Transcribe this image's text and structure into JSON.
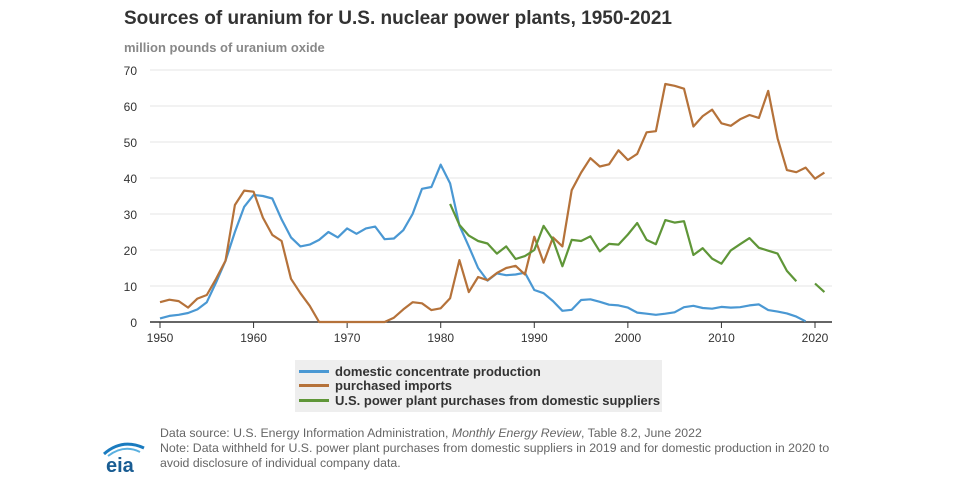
{
  "title": "Sources of uranium for U.S. nuclear power plants, 1950-2021",
  "unit_label": "million pounds of uranium oxide",
  "chart_data": {
    "type": "line",
    "title": "Sources of uranium for U.S. nuclear power plants, 1950-2021",
    "ylabel": "million pounds of uranium oxide",
    "xlim": [
      1950,
      2021
    ],
    "ylim": [
      0,
      70
    ],
    "xticks": [
      1950,
      1960,
      1970,
      1980,
      1990,
      2000,
      2010,
      2020
    ],
    "yticks": [
      0,
      10,
      20,
      30,
      40,
      50,
      60,
      70
    ],
    "grid": "horizontal",
    "legend_placement": "bottom",
    "x_start": 1950,
    "series": [
      {
        "name": "domestic concentrate production",
        "color": "#4a98d3",
        "values": [
          1,
          1.7,
          2,
          2.5,
          3.5,
          5.5,
          11,
          17,
          25,
          32,
          35.3,
          35,
          34.3,
          28.5,
          23.5,
          21,
          21.5,
          22.8,
          25,
          23.5,
          26,
          24.5,
          26,
          26.5,
          23,
          23.2,
          25.5,
          30,
          37,
          37.5,
          43.7,
          38.5,
          26.8,
          21,
          15,
          11.5,
          13.5,
          13,
          13.2,
          13.7,
          8.9,
          8,
          5.8,
          3.1,
          3.4,
          6.1,
          6.3,
          5.6,
          4.8,
          4.6,
          4,
          2.6,
          2.3,
          2,
          2.3,
          2.7,
          4.1,
          4.5,
          3.9,
          3.7,
          4.2,
          4,
          4.1,
          4.6,
          4.9,
          3.3,
          2.9,
          2.4,
          1.5,
          0.2,
          null,
          null
        ]
      },
      {
        "name": "purchased imports",
        "color": "#b5723a",
        "values": [
          5.5,
          6.2,
          5.8,
          4,
          6.5,
          7.5,
          12,
          17,
          32.5,
          36.5,
          36.2,
          29,
          24.2,
          22.5,
          12,
          8,
          4.5,
          0,
          0,
          0,
          0,
          0,
          0,
          0,
          0,
          1.2,
          3.5,
          5.5,
          5.2,
          3.3,
          3.8,
          6.6,
          17.2,
          8.3,
          12.5,
          11.6,
          13.6,
          15,
          15.6,
          13.2,
          23.7,
          16.5,
          23.5,
          21,
          36.6,
          41.5,
          45.5,
          43.2,
          43.8,
          47.7,
          45,
          46.7,
          52.7,
          53,
          66.1,
          65.6,
          64.8,
          54.3,
          57.2,
          59,
          55.2,
          54.5,
          56.3,
          57.5,
          56.7,
          64.2,
          51,
          42.2,
          41.6,
          42.9,
          39.8,
          41.5
        ]
      },
      {
        "name": "U.S. power plant purchases from domestic suppliers",
        "color": "#5f9638",
        "values": [
          null,
          null,
          null,
          null,
          null,
          null,
          null,
          null,
          null,
          null,
          null,
          null,
          null,
          null,
          null,
          null,
          null,
          null,
          null,
          null,
          null,
          null,
          null,
          null,
          null,
          null,
          null,
          null,
          null,
          null,
          null,
          32.8,
          27,
          24,
          22.5,
          21.8,
          19,
          21,
          17.5,
          18.3,
          20,
          26.7,
          22.8,
          15.5,
          22.8,
          22.5,
          23.8,
          19.6,
          21.7,
          21.5,
          24.3,
          27.5,
          22.8,
          21.6,
          28.3,
          27.6,
          28,
          18.6,
          20.5,
          17.6,
          16.2,
          19.9,
          21.6,
          23.3,
          20.6,
          19.8,
          19,
          14.2,
          11.3,
          null,
          10.7,
          8.3
        ]
      }
    ]
  },
  "legend": [
    "domestic concentrate production",
    "purchased imports",
    "U.S. power plant purchases from domestic suppliers"
  ],
  "notes": {
    "source_prefix": "Data source: U.S. Energy Information Administration, ",
    "source_italic": "Monthly Energy Review",
    "source_suffix": ", Table 8.2, June 2022",
    "note1": "Note: Data withheld for U.S. power plant purchases from domestic suppliers in 2019 and for domestic production in 2020 to",
    "note2": "avoid disclosure of individual company data."
  },
  "logo": "eia"
}
